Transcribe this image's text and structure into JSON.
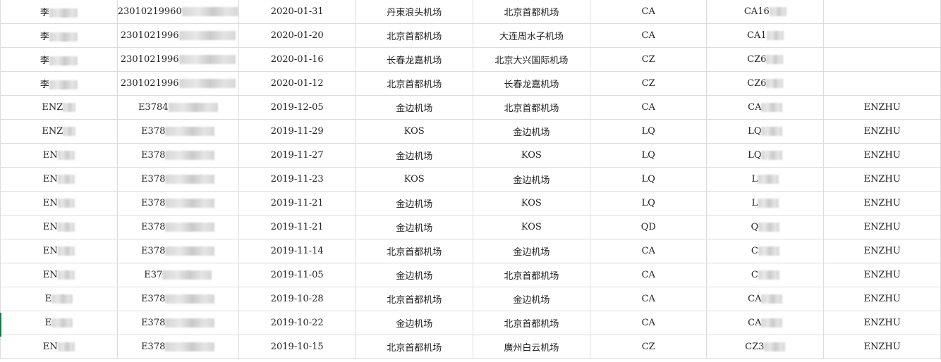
{
  "rows": [
    [
      "李",
      "23010219960",
      "2020-01-31",
      "丹東浪头机场",
      "北京首都机场",
      "CA",
      "CA16",
      ""
    ],
    [
      "李",
      "2301021996",
      "2020-01-20",
      "北京首都机场",
      "大连周水子机场",
      "CA",
      "CA1",
      ""
    ],
    [
      "李",
      "2301021996",
      "2020-01-16",
      "长春龙嘉机场",
      "北京大兴国际机场",
      "CZ",
      "CZ6",
      ""
    ],
    [
      "李",
      "2301021996",
      "2020-01-12",
      "北京首都机场",
      "长春龙嘉机场",
      "CZ",
      "CZ6",
      ""
    ],
    [
      "ENZ",
      "E3784",
      "2019-12-05",
      "金边机场",
      "北京首都机场",
      "CA",
      "CA",
      "ENZHU"
    ],
    [
      "ENZ",
      "E378",
      "2019-11-29",
      "KOS",
      "金边机场",
      "LQ",
      "LQ",
      "ENZHU"
    ],
    [
      "EN",
      "E378",
      "2019-11-27",
      "金边机场",
      "KOS",
      "LQ",
      "LQ",
      "ENZHU"
    ],
    [
      "EN",
      "E378",
      "2019-11-23",
      "KOS",
      "金边机场",
      "LQ",
      "L",
      "ENZHU"
    ],
    [
      "EN",
      "E378",
      "2019-11-21",
      "金边机场",
      "KOS",
      "LQ",
      "L",
      "ENZHU"
    ],
    [
      "EN",
      "E378",
      "2019-11-21",
      "金边机场",
      "KOS",
      "QD",
      "Q",
      "ENZHU"
    ],
    [
      "EN",
      "E378",
      "2019-11-14",
      "北京首都机场",
      "金边机场",
      "CA",
      "C",
      "ENZHU"
    ],
    [
      "EN",
      "E37",
      "2019-11-05",
      "金边机场",
      "北京首都机场",
      "CA",
      "C",
      "ENZHU"
    ],
    [
      "E",
      "E378",
      "2019-10-28",
      "北京首都机场",
      "金边机场",
      "CA",
      "CA",
      "ENZHU"
    ],
    [
      "E",
      "E378",
      "2019-10-22",
      "金边机场",
      "北京首都机场",
      "CA",
      "CA",
      "ENZHU"
    ],
    [
      "EN",
      "E378",
      "2019-10-15",
      "北京首都机场",
      "廣州白云机场",
      "CZ",
      "CZ3",
      "ENZHU"
    ]
  ],
  "colors": {
    "grid": "#dcdcdc",
    "selection": "#217346"
  }
}
